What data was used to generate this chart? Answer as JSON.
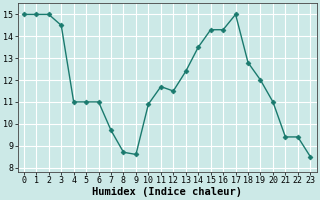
{
  "x": [
    0,
    1,
    2,
    3,
    4,
    5,
    6,
    7,
    8,
    9,
    10,
    11,
    12,
    13,
    14,
    15,
    16,
    17,
    18,
    19,
    20,
    21,
    22,
    23
  ],
  "y": [
    15.0,
    15.0,
    15.0,
    14.5,
    11.0,
    11.0,
    11.0,
    9.7,
    8.7,
    8.6,
    10.9,
    11.7,
    11.5,
    12.4,
    13.5,
    14.3,
    14.3,
    15.0,
    12.8,
    12.0,
    11.0,
    9.4,
    9.4,
    8.5
  ],
  "line_color": "#1a7a6e",
  "marker": "D",
  "marker_size": 2.5,
  "bg_color": "#cce9e7",
  "grid_color": "#ffffff",
  "xlabel": "Humidex (Indice chaleur)",
  "xlim": [
    -0.5,
    23.5
  ],
  "ylim": [
    7.8,
    15.5
  ],
  "yticks": [
    8,
    9,
    10,
    11,
    12,
    13,
    14,
    15
  ],
  "xticks": [
    0,
    1,
    2,
    3,
    4,
    5,
    6,
    7,
    8,
    9,
    10,
    11,
    12,
    13,
    14,
    15,
    16,
    17,
    18,
    19,
    20,
    21,
    22,
    23
  ],
  "tick_fontsize": 6,
  "xlabel_fontsize": 7.5,
  "linewidth": 1.0
}
